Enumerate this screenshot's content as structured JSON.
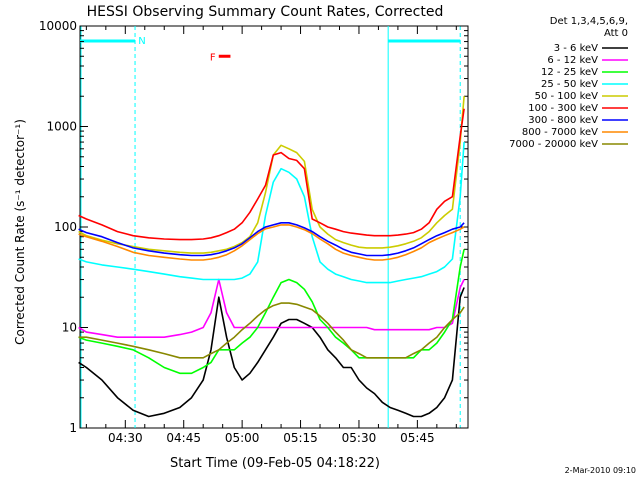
{
  "chart_data": {
    "type": "line",
    "title": "HESSI Observing Summary Count Rates, Corrected",
    "xlabel": "Start Time (09-Feb-05 04:18:22)",
    "ylabel": "Corrected Count Rate (s⁻¹ detector⁻¹)",
    "y_scale": "log",
    "ylim": [
      1,
      10000
    ],
    "y_ticks": [
      {
        "value": 1,
        "label": "1"
      },
      {
        "value": 10,
        "label": "10"
      },
      {
        "value": 100,
        "label": "100"
      },
      {
        "value": 1000,
        "label": "1000"
      },
      {
        "value": 10000,
        "label": "10000"
      }
    ],
    "xlim": [
      "04:18:22",
      "05:58:00"
    ],
    "x_ticks": [
      {
        "value": "04:30",
        "label": "04:30"
      },
      {
        "value": "04:45",
        "label": "04:45"
      },
      {
        "value": "05:00",
        "label": "05:00"
      },
      {
        "value": "05:15",
        "label": "05:15"
      },
      {
        "value": "05:30",
        "label": "05:30"
      },
      {
        "value": "05:45",
        "label": "05:45"
      }
    ],
    "legend_header": [
      "Det 1,3,4,5,6,9,",
      "Att 0"
    ],
    "legend_position": "right",
    "night_intervals": [
      {
        "start": "04:18:22",
        "end": "04:32:30",
        "label": "N"
      },
      {
        "start": "05:37:30",
        "end": "05:56:00",
        "label": ""
      }
    ],
    "flare_flag": {
      "label": "F",
      "start": "04:54:00",
      "end": "04:57:00",
      "value": 5000
    },
    "x_times": [
      "04:18",
      "04:20",
      "04:24",
      "04:28",
      "04:32",
      "04:36",
      "04:40",
      "04:44",
      "04:47",
      "04:50",
      "04:52",
      "04:54",
      "04:56",
      "04:58",
      "05:00",
      "05:02",
      "05:04",
      "05:06",
      "05:08",
      "05:10",
      "05:12",
      "05:14",
      "05:16",
      "05:18",
      "05:20",
      "05:22",
      "05:24",
      "05:26",
      "05:28",
      "05:30",
      "05:32",
      "05:34",
      "05:36",
      "05:38",
      "05:40",
      "05:42",
      "05:44",
      "05:46",
      "05:48",
      "05:50",
      "05:52",
      "05:54",
      "05:56",
      "05:57"
    ],
    "series": [
      {
        "name": "3 - 6 keV",
        "color": "#000000",
        "values": [
          4.5,
          4,
          3,
          2,
          1.5,
          1.3,
          1.4,
          1.6,
          2,
          3,
          6,
          20,
          8,
          4,
          3,
          3.5,
          4.5,
          6,
          8,
          11,
          12,
          12,
          11,
          10,
          8,
          6,
          5,
          4,
          4,
          3,
          2.5,
          2.2,
          1.8,
          1.6,
          1.5,
          1.4,
          1.3,
          1.3,
          1.4,
          1.6,
          2,
          3,
          20,
          25
        ]
      },
      {
        "name": "6 - 12 keV",
        "color": "#ff00ff",
        "values": [
          10,
          9,
          8.5,
          8,
          8,
          8,
          8,
          8.5,
          9,
          10,
          14,
          30,
          14,
          10,
          10,
          10,
          10,
          10,
          10,
          10,
          10,
          10,
          10,
          10,
          10,
          10,
          10,
          10,
          10,
          10,
          10,
          9.5,
          9.5,
          9.5,
          9.5,
          9.5,
          9.5,
          9.5,
          9.5,
          10,
          10,
          11,
          25,
          30
        ]
      },
      {
        "name": "12 - 25 keV",
        "color": "#00ff00",
        "values": [
          8,
          7.5,
          7,
          6.5,
          6,
          5,
          4,
          3.5,
          3.5,
          4,
          4.5,
          6,
          6,
          6,
          7,
          8,
          10,
          14,
          20,
          28,
          30,
          28,
          24,
          18,
          12,
          10,
          8,
          7,
          6,
          5,
          5,
          5,
          5,
          5,
          5,
          5,
          5,
          6,
          6,
          7,
          9,
          12,
          40,
          60
        ]
      },
      {
        "name": "25 - 50 keV",
        "color": "#00ffff",
        "values": [
          48,
          45,
          42,
          40,
          38,
          36,
          34,
          32,
          31,
          30,
          30,
          30,
          30,
          30,
          31,
          34,
          45,
          130,
          280,
          380,
          350,
          300,
          200,
          80,
          45,
          38,
          34,
          32,
          30,
          29,
          28,
          28,
          28,
          28,
          29,
          30,
          31,
          32,
          34,
          36,
          40,
          48,
          200,
          700
        ]
      },
      {
        "name": "50 - 100 keV",
        "color": "#cccc00",
        "values": [
          90,
          82,
          74,
          68,
          64,
          60,
          58,
          56,
          55,
          55,
          56,
          58,
          60,
          64,
          70,
          80,
          110,
          220,
          520,
          650,
          600,
          550,
          450,
          150,
          100,
          85,
          75,
          70,
          66,
          63,
          62,
          62,
          62,
          63,
          65,
          68,
          72,
          78,
          90,
          110,
          130,
          150,
          700,
          2000
        ]
      },
      {
        "name": "100 - 300 keV",
        "color": "#ff0000",
        "values": [
          130,
          120,
          105,
          90,
          82,
          78,
          76,
          75,
          75,
          76,
          78,
          82,
          88,
          95,
          110,
          140,
          190,
          260,
          520,
          550,
          480,
          460,
          380,
          120,
          110,
          100,
          95,
          90,
          87,
          85,
          83,
          82,
          82,
          82,
          83,
          85,
          88,
          95,
          110,
          150,
          180,
          200,
          800,
          1500
        ]
      },
      {
        "name": "300 - 800 keV",
        "color": "#0000ff",
        "values": [
          95,
          88,
          80,
          70,
          62,
          58,
          55,
          53,
          52,
          52,
          53,
          55,
          58,
          62,
          68,
          78,
          90,
          100,
          105,
          110,
          110,
          105,
          98,
          90,
          80,
          72,
          66,
          60,
          56,
          54,
          52,
          52,
          52,
          53,
          55,
          58,
          62,
          68,
          75,
          82,
          88,
          95,
          100,
          110
        ]
      },
      {
        "name": "800 - 7000 keV",
        "color": "#ff8800",
        "values": [
          85,
          80,
          72,
          64,
          56,
          52,
          50,
          48,
          47,
          47,
          48,
          50,
          53,
          58,
          65,
          75,
          86,
          96,
          100,
          105,
          105,
          100,
          94,
          86,
          76,
          68,
          60,
          55,
          52,
          50,
          48,
          47,
          47,
          48,
          50,
          53,
          57,
          62,
          70,
          76,
          82,
          88,
          95,
          100
        ]
      },
      {
        "name": "7000 - 20000 keV",
        "color": "#888800",
        "values": [
          8,
          8,
          7.5,
          7,
          6.5,
          6,
          5.5,
          5,
          5,
          5,
          5.5,
          6,
          7,
          8,
          9.5,
          11,
          13,
          15,
          16.5,
          17.5,
          17.5,
          17,
          16,
          15,
          13,
          11,
          9,
          7.5,
          6,
          5.5,
          5,
          5,
          5,
          5,
          5,
          5,
          5.5,
          6,
          7,
          8,
          10,
          12,
          14,
          16
        ]
      }
    ]
  },
  "footer": {
    "timestamp": "2-Mar-2010 09:10"
  }
}
